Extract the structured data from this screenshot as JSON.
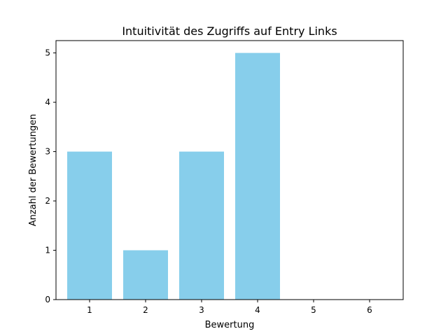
{
  "chart_data": {
    "type": "bar",
    "title": "Intuitivität des Zugriffs auf Entry Links",
    "xlabel": "Bewertung",
    "ylabel": "Anzahl der Bewertungen",
    "categories": [
      "1",
      "2",
      "3",
      "4",
      "5",
      "6"
    ],
    "values": [
      3,
      1,
      3,
      5,
      0,
      0
    ],
    "ylim": [
      0,
      5.25
    ],
    "yticks": [
      "0",
      "1",
      "2",
      "3",
      "4",
      "5"
    ],
    "bar_color": "#87ceeb",
    "grid": false,
    "legend": "none"
  }
}
